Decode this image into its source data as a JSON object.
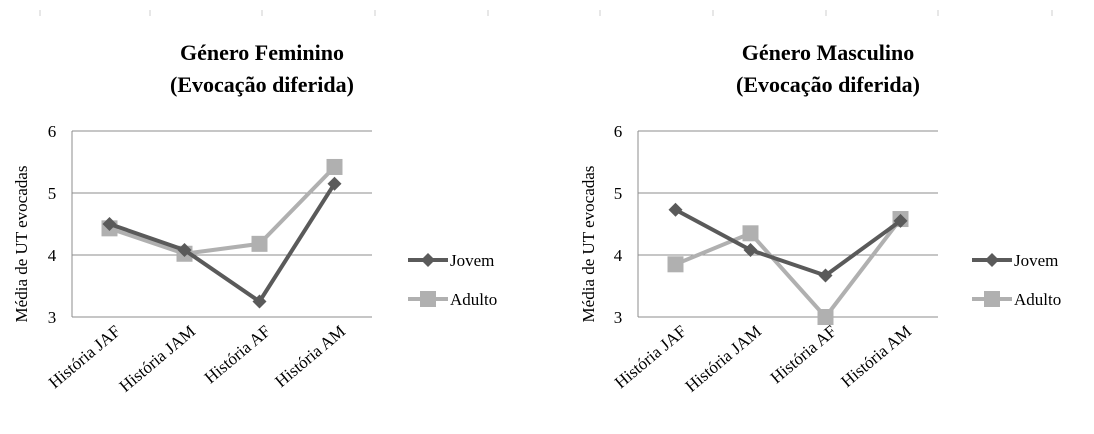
{
  "chart_data": [
    {
      "type": "line",
      "title": [
        "Género Feminino",
        "(Evocação diferida)"
      ],
      "ylabel": "Média de UT  evocadas",
      "categories": [
        "História JAF",
        "História JAM",
        "História AF",
        "História AM"
      ],
      "ylim": [
        3,
        6
      ],
      "yticks": [
        "3",
        "4",
        "5",
        "6"
      ],
      "legend": "right",
      "grid": true,
      "series": [
        {
          "name": "Jovem",
          "values": [
            4.5,
            4.08,
            3.25,
            5.15
          ],
          "color": "#5a5a5a",
          "marker": "diamond"
        },
        {
          "name": "Adulto",
          "values": [
            4.43,
            4.02,
            4.18,
            5.42
          ],
          "color": "#b0b0b0",
          "marker": "square"
        }
      ]
    },
    {
      "type": "line",
      "title": [
        "Género Masculino",
        "(Evocação diferida)"
      ],
      "ylabel": "Média de UT  evocadas",
      "categories": [
        "História JAF",
        "História JAM",
        "História AF",
        "História AM"
      ],
      "ylim": [
        3,
        6
      ],
      "yticks": [
        "3",
        "4",
        "5",
        "6"
      ],
      "legend": "right",
      "grid": true,
      "series": [
        {
          "name": "Jovem",
          "values": [
            4.73,
            4.08,
            3.67,
            4.55
          ],
          "color": "#5a5a5a",
          "marker": "diamond"
        },
        {
          "name": "Adulto",
          "values": [
            3.85,
            4.35,
            3.0,
            4.58
          ],
          "color": "#b0b0b0",
          "marker": "square"
        }
      ]
    }
  ]
}
